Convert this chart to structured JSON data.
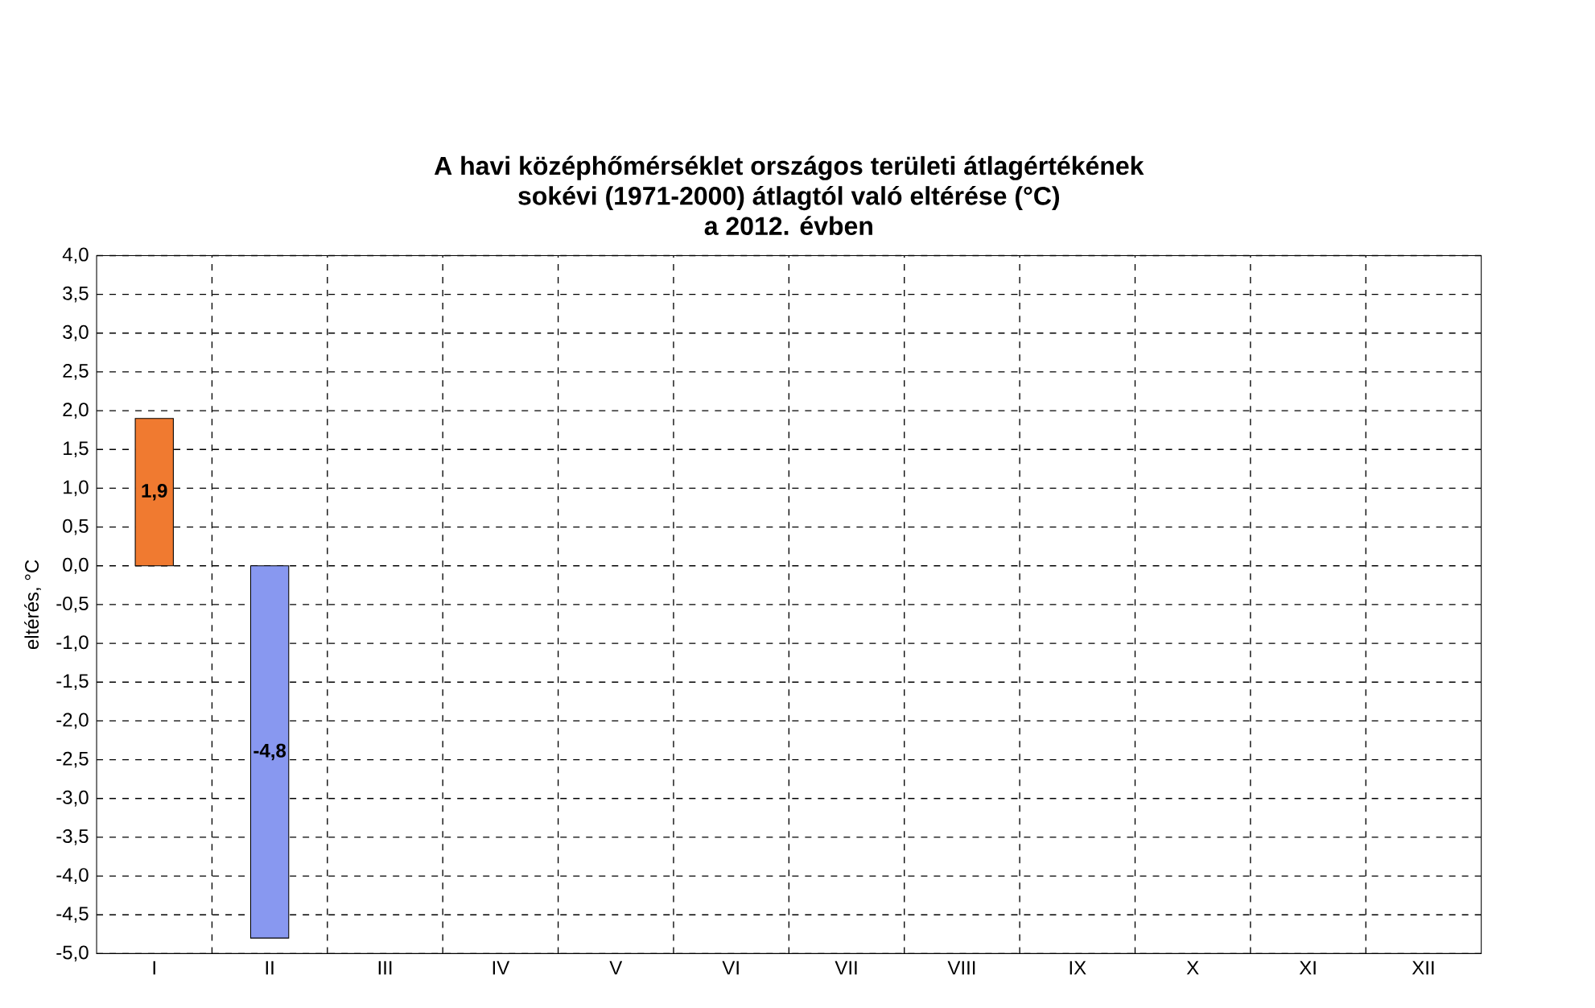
{
  "chart_data": {
    "type": "bar",
    "title": "A havi középhőmérséklet országos területi átlagértékének\nsokévi (1971-2000) átlagtól való eltérése (°C)\na 2012. évben",
    "ylabel": "eltérés, °C",
    "categories": [
      "I",
      "II",
      "III",
      "IV",
      "V",
      "VI",
      "VII",
      "VIII",
      "IX",
      "X",
      "XI",
      "XII"
    ],
    "values": [
      1.9,
      -4.8,
      null,
      null,
      null,
      null,
      null,
      null,
      null,
      null,
      null,
      null
    ],
    "value_labels": [
      "1,9",
      "-4,8",
      null,
      null,
      null,
      null,
      null,
      null,
      null,
      null,
      null,
      null
    ],
    "colors": [
      "#f07a30",
      "#8898f0",
      null,
      null,
      null,
      null,
      null,
      null,
      null,
      null,
      null,
      null
    ],
    "ylim": [
      -5,
      4
    ],
    "yticks": [
      {
        "value": -5,
        "label": "-5,0"
      },
      {
        "value": -4.5,
        "label": "-4,5"
      },
      {
        "value": -4,
        "label": "-4,0"
      },
      {
        "value": -3.5,
        "label": "-3,5"
      },
      {
        "value": -3,
        "label": "-3,0"
      },
      {
        "value": -2.5,
        "label": "-2,5"
      },
      {
        "value": -2,
        "label": "-2,0"
      },
      {
        "value": -1.5,
        "label": "-1,5"
      },
      {
        "value": -1,
        "label": "-1,0"
      },
      {
        "value": -0.5,
        "label": "-0,5"
      },
      {
        "value": 0,
        "label": "0,0"
      },
      {
        "value": 0.5,
        "label": "0,5"
      },
      {
        "value": 1,
        "label": "1,0"
      },
      {
        "value": 1.5,
        "label": "1,5"
      },
      {
        "value": 2,
        "label": "2,0"
      },
      {
        "value": 2.5,
        "label": "2,5"
      },
      {
        "value": 3,
        "label": "3,0"
      },
      {
        "value": 3.5,
        "label": "3,5"
      },
      {
        "value": 4,
        "label": "4,0"
      }
    ],
    "grid": true
  }
}
